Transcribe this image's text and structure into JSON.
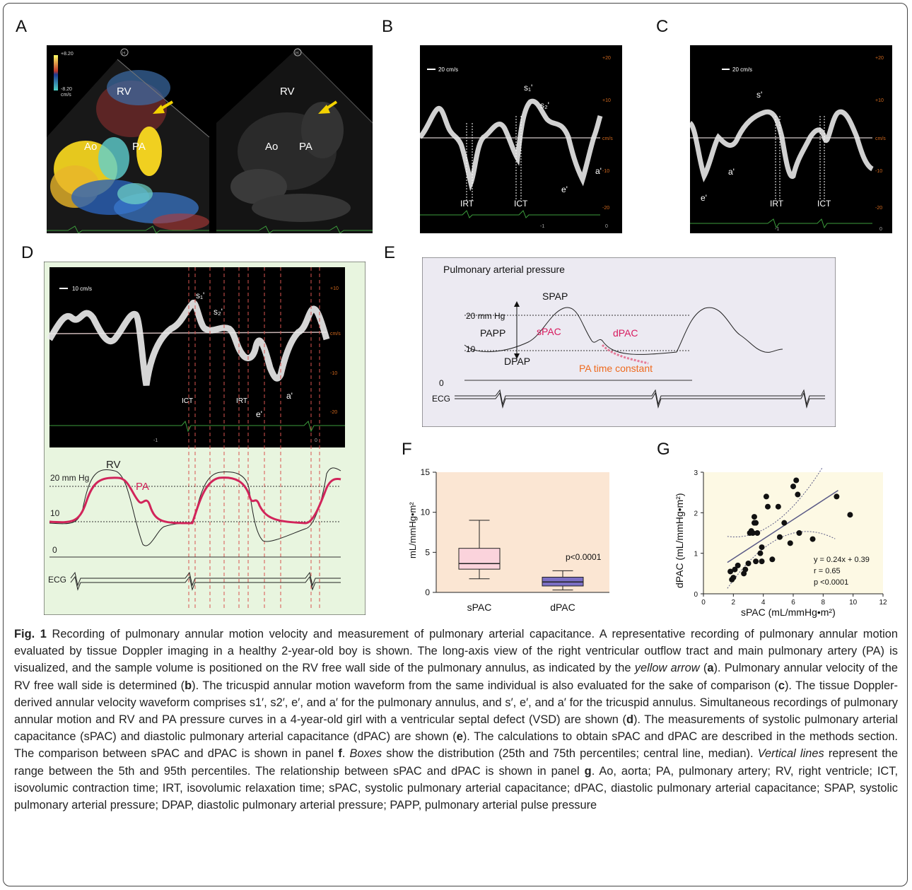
{
  "panels": {
    "a": {
      "label": "A",
      "scale_max": "+8.20",
      "scale_min": "-8.20",
      "unit": "cm/s",
      "rv": "RV",
      "ao": "Ao",
      "pa": "PA",
      "h": "H"
    },
    "b": {
      "label": "B",
      "scale": "20 cm/s",
      "s1": "s₁'",
      "s2": "s₂'",
      "a": "a'",
      "e": "e'",
      "irt": "IRT",
      "ict": "ICT",
      "ticks": [
        "+20",
        "+10",
        "cm/s",
        "-10",
        "-20"
      ],
      "bottom": [
        "-1",
        "0"
      ]
    },
    "c": {
      "label": "C",
      "scale": "20 cm/s",
      "s": "s'",
      "a": "a'",
      "e": "e'",
      "irt": "IRT",
      "ict": "ICT",
      "ticks": [
        "+20",
        "+10",
        "cm/s",
        "-10",
        "-20"
      ],
      "bottom": [
        "-1",
        "0"
      ]
    },
    "d": {
      "label": "D",
      "scale": "10 cm/s",
      "s1": "s₁'",
      "s2": "s₂'",
      "ict": "ICT",
      "irt": "IRT",
      "e": "e'",
      "a": "a'",
      "ticks": [
        "+10",
        "cm/s",
        "-10",
        "-20"
      ],
      "bottom": [
        "-1",
        "0"
      ],
      "mmhg20": "20 mm Hg",
      "ten": "10",
      "zero": "0",
      "rv": "RV",
      "pa": "PA",
      "ecg": "ECG"
    },
    "e": {
      "label": "E",
      "title": "Pulmonary arterial pressure",
      "spap": "SPAP",
      "mmhg20": "20 mm Hg",
      "papp": "PAPP",
      "spac": "sPAC",
      "dpac": "dPAC",
      "ten": "10",
      "dpap": "DPAP",
      "tc": "PA time constant",
      "zero": "0",
      "ecg": "ECG"
    },
    "f": {
      "label": "F",
      "ylabel": "mL/mmHg•m²",
      "pvalue": "p<0.0001"
    },
    "g": {
      "label": "G",
      "ylabel": "dPAC (mL/mmHg•m²)",
      "xlabel": "sPAC (mL/mmHg•m²)",
      "eq": "y = 0.24x + 0.39",
      "r": "r = 0.65",
      "p": "p <0.0001"
    }
  },
  "colors": {
    "pink": "#d81b5f",
    "orange": "#ee6a1e",
    "beige": "#fbe6d3",
    "green_bg": "#e8f5df",
    "yellow_bg": "#fdf9e4",
    "lavender": "#eceaf2"
  },
  "chart_data": [
    {
      "type": "box",
      "ylabel": "mL/mmHg•m²",
      "categories": [
        "sPAC",
        "dPAC"
      ],
      "ylim": [
        0,
        15
      ],
      "yticks": [
        0,
        5,
        10,
        15
      ],
      "boxes": [
        {
          "name": "sPAC",
          "whisker_low": 1.7,
          "q1": 2.9,
          "median": 3.6,
          "q3": 5.5,
          "whisker_high": 9.0
        },
        {
          "name": "dPAC",
          "whisker_low": 0.3,
          "q1": 0.8,
          "median": 1.3,
          "q3": 1.9,
          "whisker_high": 2.7
        }
      ],
      "annotation": "p<0.0001"
    },
    {
      "type": "scatter",
      "xlabel": "sPAC (mL/mmHg•m²)",
      "ylabel": "dPAC (mL/mmHg•m²)",
      "xlim": [
        0,
        12
      ],
      "ylim": [
        0,
        3
      ],
      "xticks": [
        0,
        2,
        4,
        6,
        8,
        10,
        12
      ],
      "yticks": [
        0,
        1,
        2,
        3
      ],
      "points": [
        [
          1.8,
          0.55
        ],
        [
          1.9,
          0.35
        ],
        [
          2.0,
          0.4
        ],
        [
          2.1,
          0.6
        ],
        [
          2.3,
          0.7
        ],
        [
          2.7,
          0.5
        ],
        [
          2.8,
          0.6
        ],
        [
          3.0,
          0.75
        ],
        [
          3.1,
          1.5
        ],
        [
          3.2,
          1.55
        ],
        [
          3.3,
          1.5
        ],
        [
          3.4,
          1.75
        ],
        [
          3.4,
          1.9
        ],
        [
          3.5,
          1.75
        ],
        [
          3.6,
          1.5
        ],
        [
          3.5,
          0.8
        ],
        [
          3.8,
          1.0
        ],
        [
          3.9,
          1.15
        ],
        [
          3.9,
          0.8
        ],
        [
          4.2,
          2.4
        ],
        [
          4.3,
          2.15
        ],
        [
          4.6,
          0.85
        ],
        [
          5.0,
          2.15
        ],
        [
          5.1,
          1.4
        ],
        [
          5.4,
          1.75
        ],
        [
          5.8,
          1.25
        ],
        [
          6.0,
          2.65
        ],
        [
          6.2,
          2.8
        ],
        [
          6.3,
          2.45
        ],
        [
          6.4,
          1.5
        ],
        [
          7.3,
          1.35
        ],
        [
          8.9,
          2.4
        ],
        [
          9.8,
          1.95
        ]
      ],
      "regression": {
        "slope": 0.24,
        "intercept": 0.39
      },
      "annotation": [
        "y = 0.24x + 0.39",
        "r = 0.65",
        "p <0.0001"
      ]
    }
  ],
  "caption": {
    "fig": "Fig. 1",
    "seg1": " Recording of pulmonary annular motion velocity and measurement of pulmonary arterial capacitance. A representative recording of pulmonary annular motion evaluated by tissue Doppler imaging in a healthy 2-year-old boy is shown. The long-axis view of the right ventricular outflow tract and main pulmonary artery (PA) is visualized, and the sample volume is positioned on the RV free wall side of the pulmonary annulus, as indicated by the ",
    "yellow": "yellow arrow",
    "seg2": " (",
    "a": "a",
    "seg3": "). Pulmonary annular velocity of the RV free wall side is determined (",
    "b": "b",
    "seg4": "). The tricuspid annular motion waveform from the same individual is also evaluated for the sake of comparison (",
    "c": "c",
    "seg5": "). The tissue Doppler-derived annular velocity waveform comprises s1′, s2′, e′, and a′ for the pulmonary annulus, and s′, e′, and a′ for the tricuspid annulus. Simultaneous recordings of pulmonary annular motion and RV and PA pressure curves in a 4-year-old girl with a ventricular septal defect (VSD) are shown (",
    "d": "d",
    "seg6": "). The measurements of systolic pulmonary arterial capacitance (sPAC) and diastolic pulmonary arterial capacitance (dPAC) are shown (",
    "e": "e",
    "seg7": "). The calculations to obtain sPAC and dPAC are described in the methods section. The comparison between sPAC and dPAC is shown in panel ",
    "f": "f",
    "seg8": ". ",
    "boxes": "Boxes",
    "seg9": " show the distribution (25th and 75th percentiles; central line, median). ",
    "vlines": "Vertical lines",
    "seg10": " represent the range between the 5th and 95th percentiles. The relationship between sPAC and dPAC is shown in panel ",
    "g": "g",
    "seg11": ". Ao, aorta; PA, pulmonary artery; RV, right ventricle; ICT, isovolumic contraction time; IRT, isovolumic relaxation time; sPAC, systolic pulmonary arterial capacitance; dPAC, diastolic pulmonary arterial capacitance; SPAP, systolic pulmonary arterial pressure; DPAP, diastolic pulmonary arterial pressure; PAPP, pulmonary arterial pulse pressure"
  }
}
